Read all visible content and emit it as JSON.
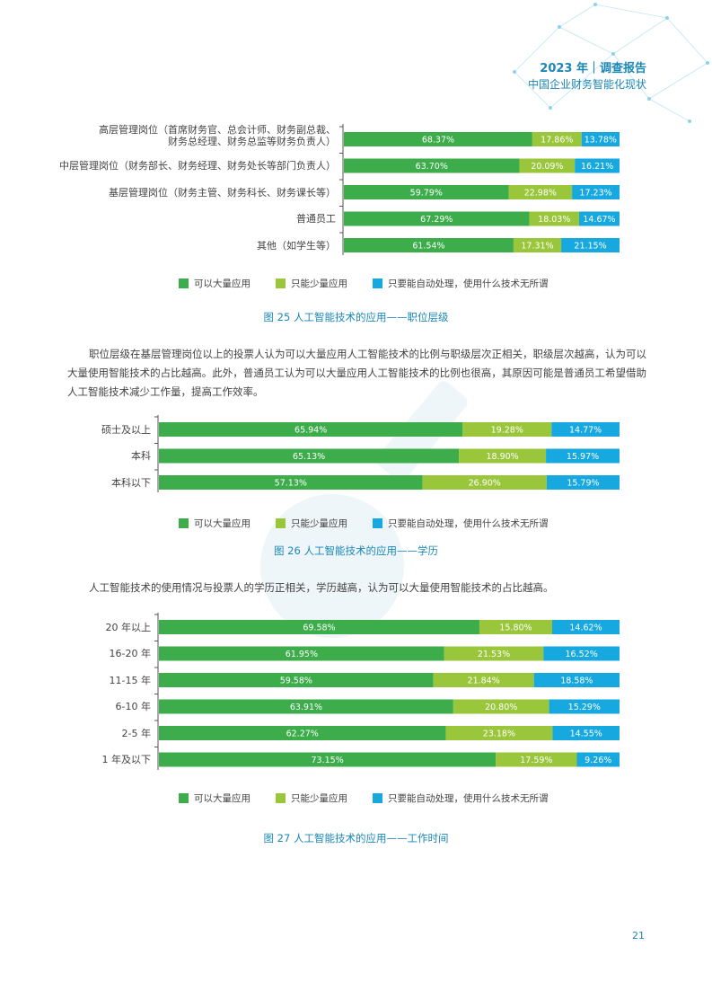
{
  "header": {
    "title": "2023 年｜调查报告",
    "subtitle": "中国企业财务智能化现状"
  },
  "colors": {
    "green": "#3cad4a",
    "lime": "#9ac63c",
    "blue": "#17a8e0",
    "accent": "#1b87b6"
  },
  "legend": [
    "可以大量应用",
    "只能少量应用",
    "只要能自动处理，使用什么技术无所谓"
  ],
  "chart_data": [
    {
      "type": "bar",
      "stacked": true,
      "orientation": "horizontal",
      "categories": [
        [
          "高层管理岗位（首席财务官、总会计师、财务副总裁、",
          "财务总经理、财务总监等财务负责人）"
        ],
        [
          "中层管理岗位（财务部长、财务经理、财务处长等部门负责人）"
        ],
        [
          "基层管理岗位（财务主管、财务科长、财务课长等）"
        ],
        [
          "普通员工"
        ],
        [
          "其他（如学生等）"
        ]
      ],
      "series": [
        {
          "name": "可以大量应用",
          "values": [
            68.37,
            63.7,
            59.79,
            67.29,
            61.54
          ],
          "labels": [
            "68.37%",
            "63.70%",
            "59.79%",
            "67.29%",
            "61.54%"
          ]
        },
        {
          "name": "只能少量应用",
          "values": [
            17.86,
            20.09,
            22.98,
            18.03,
            17.31
          ],
          "labels": [
            "17.86%",
            "20.09%",
            "22.98%",
            "18.03%",
            "17.31%"
          ]
        },
        {
          "name": "只要能自动处理，使用什么技术无所谓",
          "values": [
            13.78,
            16.21,
            17.23,
            14.67,
            21.15
          ],
          "labels": [
            "13.78%",
            "16.21%",
            "17.23%",
            "14.67%",
            "21.15%"
          ]
        }
      ],
      "caption": "图 25  人工智能技术的应用——职位层级"
    },
    {
      "type": "bar",
      "stacked": true,
      "orientation": "horizontal",
      "categories": [
        [
          "硕士及以上"
        ],
        [
          "本科"
        ],
        [
          "本科以下"
        ]
      ],
      "series": [
        {
          "name": "可以大量应用",
          "values": [
            65.94,
            65.13,
            57.13
          ],
          "labels": [
            "65.94%",
            "65.13%",
            "57.13%"
          ]
        },
        {
          "name": "只能少量应用",
          "values": [
            19.28,
            18.9,
            26.9
          ],
          "labels": [
            "19.28%",
            "18.90%",
            "26.90%"
          ]
        },
        {
          "name": "只要能自动处理，使用什么技术无所谓",
          "values": [
            14.77,
            15.97,
            15.79
          ],
          "labels": [
            "14.77%",
            "15.97%",
            "15.79%"
          ]
        }
      ],
      "caption": "图 26  人工智能技术的应用——学历"
    },
    {
      "type": "bar",
      "stacked": true,
      "orientation": "horizontal",
      "categories": [
        [
          "20 年以上"
        ],
        [
          "16-20 年"
        ],
        [
          "11-15 年"
        ],
        [
          "6-10 年"
        ],
        [
          "2-5 年"
        ],
        [
          "1 年及以下"
        ]
      ],
      "series": [
        {
          "name": "可以大量应用",
          "values": [
            69.58,
            61.95,
            59.58,
            63.91,
            62.27,
            73.15
          ],
          "labels": [
            "69.58%",
            "61.95%",
            "59.58%",
            "63.91%",
            "62.27%",
            "73.15%"
          ]
        },
        {
          "name": "只能少量应用",
          "values": [
            15.8,
            21.53,
            21.84,
            20.8,
            23.18,
            17.59
          ],
          "labels": [
            "15.80%",
            "21.53%",
            "21.84%",
            "20.80%",
            "23.18%",
            "17.59%"
          ]
        },
        {
          "name": "只要能自动处理，使用什么技术无所谓",
          "values": [
            14.62,
            16.52,
            18.58,
            15.29,
            14.55,
            9.26
          ],
          "labels": [
            "14.62%",
            "16.52%",
            "18.58%",
            "15.29%",
            "14.55%",
            "9.26%"
          ]
        }
      ],
      "caption": "图 27  人工智能技术的应用——工作时间"
    }
  ],
  "paragraphs": [
    "职位层级在基层管理岗位以上的投票人认为可以大量应用人工智能技术的比例与职级层次正相关，职级层次越高，认为可以大量使用智能技术的占比越高。此外，普通员工认为可以大量应用人工智能技术的比例也很高，其原因可能是普通员工希望借助人工智能技术减少工作量，提高工作效率。",
    "人工智能技术的使用情况与投票人的学历正相关，学历越高，认为可以大量使用智能技术的占比越高。"
  ],
  "page_number": "21"
}
